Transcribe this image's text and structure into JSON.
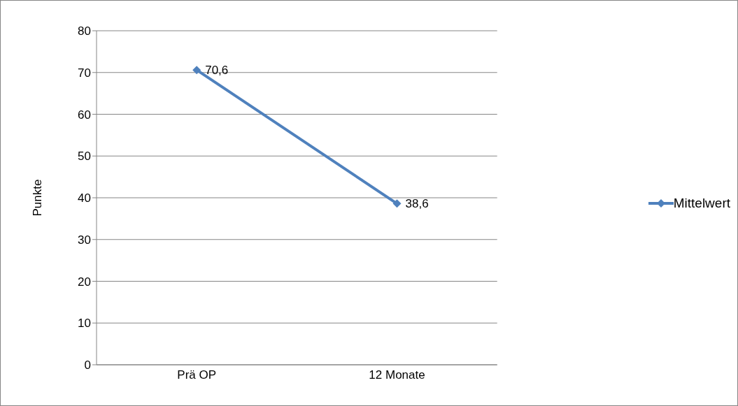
{
  "chart_data": {
    "type": "line",
    "ylabel": "Punkte",
    "categories": [
      "Prä OP",
      "12 Monate"
    ],
    "series": [
      {
        "name": "Mittelwert",
        "color": "#4f81bd",
        "values": [
          70.6,
          38.6
        ],
        "value_labels": [
          "70,6",
          "38,6"
        ]
      }
    ],
    "ylim": [
      0,
      80
    ],
    "yticks": [
      0,
      10,
      20,
      30,
      40,
      50,
      60,
      70,
      80
    ],
    "grid": "y",
    "legend": "right",
    "marker": "diamond",
    "line_style": "solid"
  }
}
